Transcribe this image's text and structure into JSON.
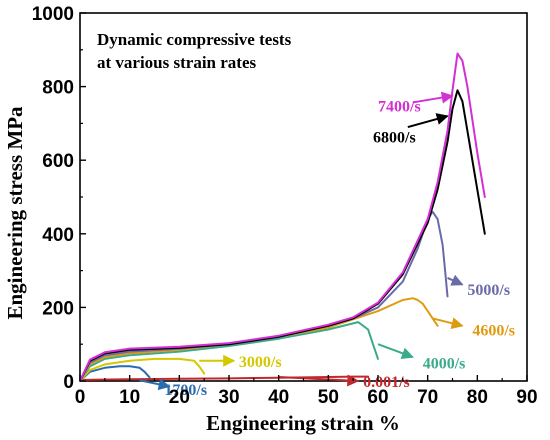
{
  "chart_data": {
    "type": "line",
    "title_lines": [
      "Dynamic compressive tests",
      "at various strain rates"
    ],
    "xlabel": "Engineering strain %",
    "ylabel": "Engineering stress MPa",
    "xlim": [
      0,
      90
    ],
    "ylim": [
      0,
      1000
    ],
    "xticks": [
      0,
      10,
      20,
      30,
      40,
      50,
      60,
      70,
      80,
      90
    ],
    "yticks": [
      0,
      200,
      400,
      600,
      800,
      1000
    ],
    "grid": false,
    "series": [
      {
        "name": "0.001/s",
        "color": "#c0282c",
        "x": [
          0,
          1,
          10,
          20,
          30,
          40,
          50,
          55,
          58
        ],
        "y": [
          0,
          3,
          5,
          6,
          7,
          9,
          11,
          12,
          12
        ],
        "label_at": [
          57,
          0
        ],
        "arrow_from": [
          40,
          11
        ],
        "arrow_to": [
          56,
          0
        ]
      },
      {
        "name": "1700/s",
        "color": "#2b6cb0",
        "x": [
          0,
          2,
          5,
          8,
          10,
          12,
          13,
          14
        ],
        "y": [
          0,
          25,
          36,
          40,
          40,
          36,
          25,
          10
        ],
        "label_at": [
          17,
          -22
        ],
        "arrow_from": [
          12,
          2
        ],
        "arrow_to": [
          18,
          -15
        ]
      },
      {
        "name": "3000/s",
        "color": "#d4c800",
        "x": [
          0,
          2,
          5,
          10,
          15,
          20,
          23,
          24,
          25
        ],
        "y": [
          0,
          30,
          45,
          55,
          60,
          60,
          55,
          40,
          20
        ],
        "label_at": [
          32,
          55
        ],
        "arrow_from": [
          24,
          55
        ],
        "arrow_to": [
          31,
          55
        ]
      },
      {
        "name": "4000/s",
        "color": "#3aab8a",
        "x": [
          0,
          2,
          5,
          10,
          20,
          30,
          40,
          50,
          56,
          58,
          59,
          60
        ],
        "y": [
          0,
          40,
          60,
          70,
          80,
          95,
          115,
          140,
          160,
          140,
          100,
          60
        ],
        "label_at": [
          69,
          50
        ],
        "arrow_from": [
          60,
          100
        ],
        "arrow_to": [
          67,
          65
        ]
      },
      {
        "name": "4600/s",
        "color": "#e09a12",
        "x": [
          0,
          2,
          5,
          10,
          20,
          30,
          40,
          50,
          60,
          65,
          67,
          68,
          69,
          70,
          72
        ],
        "y": [
          0,
          45,
          65,
          75,
          85,
          100,
          120,
          145,
          190,
          220,
          225,
          220,
          210,
          190,
          150
        ],
        "label_at": [
          79,
          140
        ],
        "arrow_from": [
          71,
          170
        ],
        "arrow_to": [
          77,
          150
        ]
      },
      {
        "name": "5000/s",
        "color": "#6a6aa8",
        "x": [
          0,
          2,
          5,
          10,
          20,
          30,
          40,
          50,
          55,
          60,
          65,
          68,
          70,
          71,
          72,
          73,
          73.5,
          74
        ],
        "y": [
          0,
          50,
          70,
          80,
          88,
          100,
          120,
          150,
          170,
          200,
          270,
          360,
          440,
          460,
          440,
          370,
          300,
          230
        ],
        "label_at": [
          78,
          250
        ],
        "arrow_from": [
          74,
          280
        ],
        "arrow_to": [
          77,
          262
        ]
      },
      {
        "name": "6800/s",
        "color": "#000000",
        "x": [
          0,
          2,
          5,
          10,
          20,
          30,
          40,
          50,
          55,
          60,
          65,
          70,
          72,
          74,
          75,
          76,
          77,
          78,
          80,
          81.5
        ],
        "y": [
          0,
          55,
          75,
          85,
          90,
          100,
          120,
          150,
          170,
          210,
          290,
          430,
          520,
          650,
          740,
          790,
          760,
          680,
          520,
          400
        ],
        "label_at": [
          59,
          665
        ],
        "arrow_from": [
          66,
          690
        ],
        "arrow_to": [
          74,
          720
        ]
      },
      {
        "name": "7400/s",
        "color": "#d42fd4",
        "x": [
          0,
          2,
          5,
          10,
          20,
          30,
          40,
          50,
          55,
          60,
          65,
          70,
          72,
          74,
          75,
          76,
          77,
          78,
          80,
          81.5
        ],
        "y": [
          0,
          58,
          78,
          88,
          93,
          103,
          123,
          153,
          173,
          213,
          295,
          440,
          540,
          680,
          790,
          890,
          870,
          800,
          620,
          500
        ],
        "label_at": [
          60,
          748
        ],
        "arrow_from": [
          67,
          757
        ],
        "arrow_to": [
          75,
          775
        ]
      }
    ]
  }
}
